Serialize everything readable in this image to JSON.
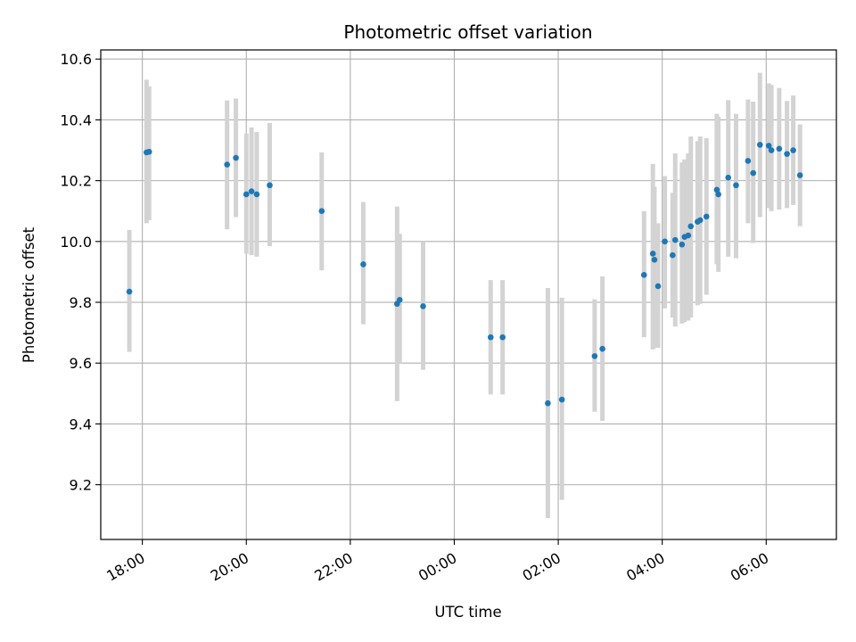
{
  "chart_data": {
    "type": "scatter",
    "title": "Photometric offset variation",
    "xlabel": "UTC time",
    "ylabel": "Photometric offset",
    "x_unit": "hours",
    "x_origin_label": "00:00",
    "xlim": [
      -6.8,
      7.35
    ],
    "ylim": [
      9.02,
      10.63
    ],
    "x_ticks": [
      {
        "value": -6,
        "label": "18:00"
      },
      {
        "value": -4,
        "label": "20:00"
      },
      {
        "value": -2,
        "label": "22:00"
      },
      {
        "value": 0,
        "label": "00:00"
      },
      {
        "value": 2,
        "label": "02:00"
      },
      {
        "value": 4,
        "label": "04:00"
      },
      {
        "value": 6,
        "label": "06:00"
      }
    ],
    "y_ticks": [
      {
        "value": 9.2,
        "label": "9.2"
      },
      {
        "value": 9.4,
        "label": "9.4"
      },
      {
        "value": 9.6,
        "label": "9.6"
      },
      {
        "value": 9.8,
        "label": "9.8"
      },
      {
        "value": 10.0,
        "label": "10.0"
      },
      {
        "value": 10.2,
        "label": "10.2"
      },
      {
        "value": 10.4,
        "label": "10.4"
      },
      {
        "value": 10.6,
        "label": "10.6"
      }
    ],
    "grid": true,
    "marker_color": "#1f77b4",
    "errorbar_color": "#d3d3d3",
    "points": [
      {
        "x": -6.25,
        "y": 9.835,
        "lo": 9.637,
        "hi": 10.038
      },
      {
        "x": -5.92,
        "y": 10.293,
        "lo": 10.06,
        "hi": 10.532
      },
      {
        "x": -5.87,
        "y": 10.295,
        "lo": 10.07,
        "hi": 10.51
      },
      {
        "x": -4.37,
        "y": 10.253,
        "lo": 10.04,
        "hi": 10.464
      },
      {
        "x": -4.2,
        "y": 10.275,
        "lo": 10.08,
        "hi": 10.47
      },
      {
        "x": -4.0,
        "y": 10.155,
        "lo": 9.96,
        "hi": 10.355
      },
      {
        "x": -3.9,
        "y": 10.165,
        "lo": 9.955,
        "hi": 10.375
      },
      {
        "x": -3.8,
        "y": 10.155,
        "lo": 9.95,
        "hi": 10.36
      },
      {
        "x": -3.55,
        "y": 10.185,
        "lo": 9.985,
        "hi": 10.39
      },
      {
        "x": -2.55,
        "y": 10.1,
        "lo": 9.905,
        "hi": 10.293
      },
      {
        "x": -1.75,
        "y": 9.925,
        "lo": 9.728,
        "hi": 10.13
      },
      {
        "x": -1.1,
        "y": 9.795,
        "lo": 9.475,
        "hi": 10.115
      },
      {
        "x": -1.05,
        "y": 9.808,
        "lo": 9.6,
        "hi": 10.025
      },
      {
        "x": -0.6,
        "y": 9.787,
        "lo": 9.578,
        "hi": 10.0
      },
      {
        "x": 0.7,
        "y": 9.685,
        "lo": 9.497,
        "hi": 9.873
      },
      {
        "x": 0.93,
        "y": 9.685,
        "lo": 9.497,
        "hi": 9.873
      },
      {
        "x": 1.8,
        "y": 9.468,
        "lo": 9.09,
        "hi": 9.847
      },
      {
        "x": 2.07,
        "y": 9.48,
        "lo": 9.15,
        "hi": 9.815
      },
      {
        "x": 2.7,
        "y": 9.623,
        "lo": 9.44,
        "hi": 9.81
      },
      {
        "x": 2.85,
        "y": 9.647,
        "lo": 9.41,
        "hi": 9.885
      },
      {
        "x": 3.65,
        "y": 9.89,
        "lo": 9.685,
        "hi": 10.1
      },
      {
        "x": 3.82,
        "y": 9.96,
        "lo": 9.645,
        "hi": 10.255
      },
      {
        "x": 3.85,
        "y": 9.94,
        "lo": 9.65,
        "hi": 10.18
      },
      {
        "x": 3.92,
        "y": 9.853,
        "lo": 9.65,
        "hi": 10.06
      },
      {
        "x": 4.05,
        "y": 10.0,
        "lo": 9.78,
        "hi": 10.215
      },
      {
        "x": 4.2,
        "y": 9.955,
        "lo": 9.75,
        "hi": 10.16
      },
      {
        "x": 4.25,
        "y": 10.005,
        "lo": 9.72,
        "hi": 10.29
      },
      {
        "x": 4.38,
        "y": 9.99,
        "lo": 9.73,
        "hi": 10.26
      },
      {
        "x": 4.43,
        "y": 10.015,
        "lo": 9.735,
        "hi": 10.27
      },
      {
        "x": 4.5,
        "y": 10.02,
        "lo": 9.74,
        "hi": 10.29
      },
      {
        "x": 4.55,
        "y": 10.05,
        "lo": 9.75,
        "hi": 10.345
      },
      {
        "x": 4.68,
        "y": 10.065,
        "lo": 9.79,
        "hi": 10.33
      },
      {
        "x": 4.73,
        "y": 10.07,
        "lo": 9.795,
        "hi": 10.345
      },
      {
        "x": 4.85,
        "y": 10.082,
        "lo": 9.825,
        "hi": 10.34
      },
      {
        "x": 5.05,
        "y": 10.17,
        "lo": 9.925,
        "hi": 10.42
      },
      {
        "x": 5.08,
        "y": 10.155,
        "lo": 9.9,
        "hi": 10.41
      },
      {
        "x": 5.27,
        "y": 10.21,
        "lo": 9.95,
        "hi": 10.465
      },
      {
        "x": 5.42,
        "y": 10.185,
        "lo": 9.945,
        "hi": 10.42
      },
      {
        "x": 5.65,
        "y": 10.265,
        "lo": 10.06,
        "hi": 10.467
      },
      {
        "x": 5.75,
        "y": 10.225,
        "lo": 9.995,
        "hi": 10.46
      },
      {
        "x": 5.88,
        "y": 10.318,
        "lo": 10.08,
        "hi": 10.555
      },
      {
        "x": 6.05,
        "y": 10.315,
        "lo": 10.11,
        "hi": 10.52
      },
      {
        "x": 6.1,
        "y": 10.3,
        "lo": 10.1,
        "hi": 10.515
      },
      {
        "x": 6.25,
        "y": 10.305,
        "lo": 10.105,
        "hi": 10.505
      },
      {
        "x": 6.4,
        "y": 10.288,
        "lo": 10.11,
        "hi": 10.462
      },
      {
        "x": 6.52,
        "y": 10.3,
        "lo": 10.12,
        "hi": 10.48
      },
      {
        "x": 6.65,
        "y": 10.218,
        "lo": 10.05,
        "hi": 10.385
      }
    ]
  }
}
